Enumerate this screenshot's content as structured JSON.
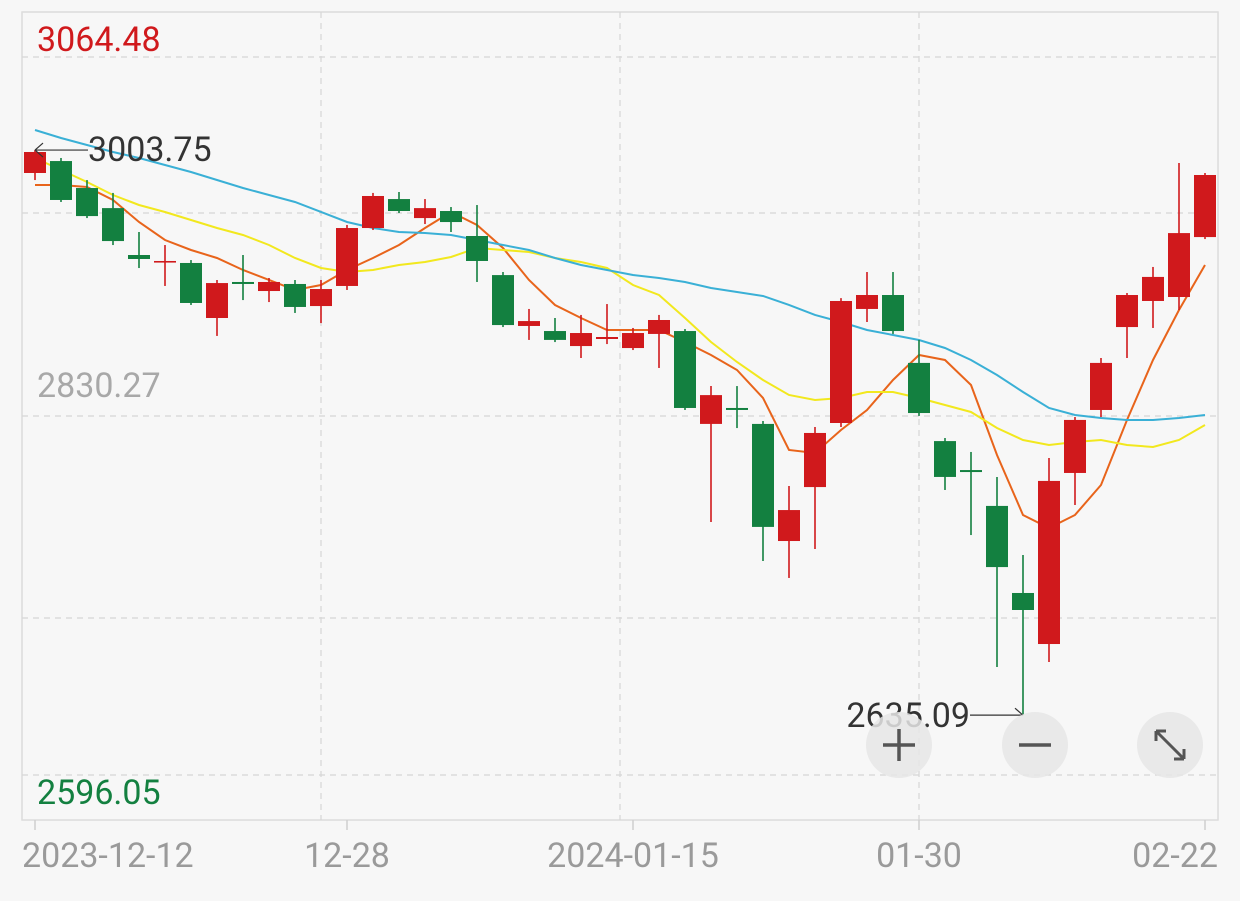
{
  "chart_data": {
    "type": "candlestick",
    "categories": [
      "2023-12-12",
      null,
      null,
      null,
      null,
      null,
      null,
      null,
      null,
      null,
      null,
      null,
      "12-28",
      null,
      null,
      null,
      null,
      null,
      null,
      null,
      null,
      null,
      null,
      "2024-01-15",
      null,
      null,
      null,
      null,
      null,
      null,
      null,
      null,
      null,
      null,
      "01-30",
      null,
      null,
      null,
      null,
      null,
      null,
      null,
      null,
      null,
      null,
      "02-22"
    ],
    "open": [
      2988.8,
      2996.6,
      2979.0,
      2965.9,
      2935.3,
      2930.7,
      2930.1,
      2894.2,
      2917.7,
      2911.8,
      2916.4,
      2902.0,
      2915.1,
      2952.9,
      2971.8,
      2959.4,
      2964.0,
      2947.7,
      2922.2,
      2889.0,
      2885.7,
      2875.9,
      2880.5,
      2874.6,
      2883.8,
      2885.7,
      2825.1,
      2835.5,
      2825.1,
      2748.7,
      2783.9,
      2825.7,
      2900.1,
      2909.2,
      2864.9,
      2813.9,
      2795.0,
      2771.6,
      2714.8,
      2681.5,
      2793.1,
      2834.2,
      2888.3,
      2905.3,
      2907.9,
      2947.0
    ],
    "high": [
      3003.75,
      2998.6,
      2984.2,
      2975.8,
      2950.3,
      2941.8,
      2932.0,
      2919.0,
      2935.3,
      2920.3,
      2919.0,
      2919.0,
      2954.9,
      2975.8,
      2976.4,
      2971.8,
      2966.6,
      2967.9,
      2924.2,
      2900.1,
      2894.2,
      2896.2,
      2903.3,
      2887.7,
      2896.2,
      2887.0,
      2849.8,
      2849.8,
      2827.0,
      2784.6,
      2823.1,
      2907.2,
      2924.2,
      2924.2,
      2879.9,
      2815.9,
      2806.8,
      2790.5,
      2739.6,
      2802.9,
      2829.6,
      2868.1,
      2910.5,
      2927.5,
      2995.3,
      2988.8
    ],
    "low": [
      2984.2,
      2969.9,
      2959.4,
      2941.8,
      2926.8,
      2915.1,
      2902.7,
      2882.5,
      2905.9,
      2904.6,
      2897.5,
      2890.9,
      2912.5,
      2951.6,
      2962.7,
      2955.5,
      2950.3,
      2917.7,
      2888.3,
      2879.9,
      2878.5,
      2868.1,
      2877.2,
      2873.3,
      2861.6,
      2834.2,
      2761.1,
      2822.4,
      2735.7,
      2724.6,
      2743.5,
      2823.1,
      2891.6,
      2883.8,
      2830.3,
      2782.0,
      2752.6,
      2666.5,
      2635.09,
      2669.8,
      2772.2,
      2829.6,
      2868.1,
      2887.7,
      2899.4,
      2945.7
    ],
    "close": [
      3002.5,
      2971.2,
      2960.7,
      2944.4,
      2932.7,
      2931.4,
      2904.0,
      2917.0,
      2916.4,
      2917.7,
      2901.4,
      2913.1,
      2952.9,
      2973.8,
      2964.0,
      2965.9,
      2956.8,
      2931.4,
      2889.6,
      2892.2,
      2879.9,
      2884.4,
      2881.8,
      2884.4,
      2892.9,
      2835.5,
      2843.9,
      2834.2,
      2757.9,
      2768.9,
      2819.2,
      2905.3,
      2909.2,
      2885.7,
      2832.2,
      2790.5,
      2793.7,
      2731.7,
      2703.7,
      2787.9,
      2827.7,
      2864.9,
      2909.2,
      2921.0,
      2949.6,
      2987.5
    ],
    "up_color": "#d0191c",
    "down_color": "#138040",
    "series": [
      {
        "color": "#e8641b",
        "values": [
          2980.98,
          2980.98,
          2979.67,
          2971.19,
          2956.84,
          2945.09,
          2938.57,
          2933.35,
          2925.52,
          2919.0,
          2912.47,
          2915.73,
          2925.52,
          2933.35,
          2941.83,
          2952.92,
          2963.36,
          2954.88,
          2939.88,
          2919.0,
          2902.69,
          2894.21,
          2886.38,
          2886.38,
          2886.38,
          2878.55,
          2870.07,
          2860.28,
          2842.02,
          2808.09,
          2806.13,
          2821.14,
          2834.19,
          2853.76,
          2870.07,
          2866.81,
          2850.5,
          2804.83,
          2765.7,
          2757.19,
          2765.7,
          2785.24,
          2827.66,
          2866.81,
          2899.43,
          2928.79
        ]
      },
      {
        "color": "#f2e81e",
        "values": [
          2998.59,
          2990.76,
          2982.93,
          2974.45,
          2967.93,
          2963.36,
          2958.14,
          2952.92,
          2948.36,
          2941.83,
          2933.35,
          2926.83,
          2924.22,
          2925.52,
          2928.79,
          2930.74,
          2934.0,
          2939.88,
          2938.57,
          2937.27,
          2933.35,
          2930.74,
          2926.83,
          2915.73,
          2909.21,
          2894.21,
          2878.55,
          2865.5,
          2853.76,
          2843.98,
          2840.71,
          2842.02,
          2845.93,
          2845.93,
          2842.02,
          2837.45,
          2832.89,
          2822.45,
          2814.61,
          2811.35,
          2813.31,
          2814.61,
          2811.35,
          2810.05,
          2814.61,
          2824.4
        ]
      },
      {
        "color": "#3ab0d6",
        "values": [
          3016.86,
          3011.64,
          3007.07,
          3002.51,
          2998.59,
          2994.02,
          2989.46,
          2984.24,
          2979.02,
          2974.45,
          2969.89,
          2963.36,
          2956.84,
          2952.92,
          2950.31,
          2949.66,
          2948.36,
          2945.09,
          2941.83,
          2938.57,
          2933.35,
          2928.79,
          2925.52,
          2922.26,
          2920.3,
          2917.69,
          2913.78,
          2911.17,
          2908.56,
          2902.69,
          2896.17,
          2891.6,
          2886.38,
          2883.12,
          2879.86,
          2874.64,
          2866.81,
          2857.02,
          2845.93,
          2835.49,
          2830.92,
          2828.97,
          2827.66,
          2827.66,
          2828.97,
          2830.92
        ]
      }
    ],
    "ylim": [
      2596.05,
      3064.48
    ],
    "yticks": [
      2596.05,
      2830.27,
      3064.48
    ],
    "ytick_colors": [
      "#138040",
      "#a8a8a8",
      "#d0191c"
    ],
    "grid": true
  }
}
